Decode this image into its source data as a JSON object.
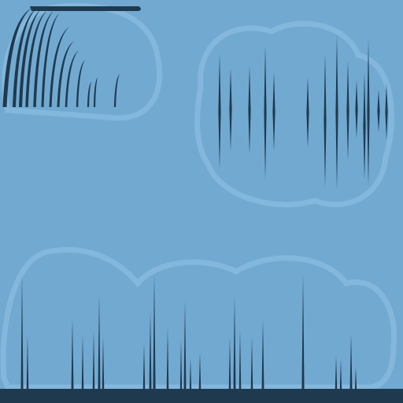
{
  "canvas": {
    "background": "#72a9d1",
    "ink": "#1f3a4f",
    "watermark": "#83b7dc"
  },
  "groups": [
    {
      "name": "falls-strands",
      "count": 12
    },
    {
      "name": "mirrored-spike-cluster",
      "count": 16
    },
    {
      "name": "baseline-spikes",
      "count": 36
    }
  ]
}
